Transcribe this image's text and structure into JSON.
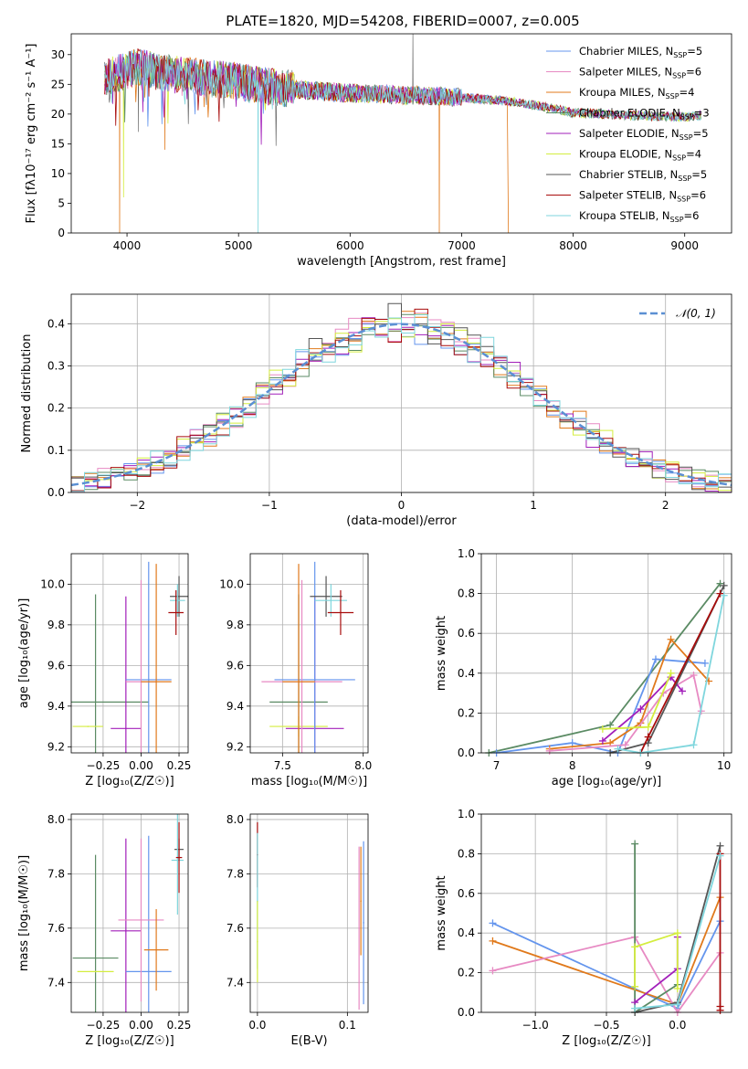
{
  "figure": {
    "title": "PLATE=1820, MJD=54208, FIBERID=0007, z=0.005"
  },
  "colors": {
    "Chabrier MILES": "#6495ed",
    "Salpeter MILES": "#e78ac3",
    "Kroupa MILES": "#e0791b",
    "Chabrier ELODIE": "#5b8b64",
    "Salpeter ELODIE": "#a21fba",
    "Kroupa ELODIE": "#d4ed3f",
    "Chabrier STELIB": "#555555",
    "Salpeter STELIB": "#a80c0c",
    "Kroupa STELIB": "#7fd6dd",
    "gaussian": "#5b8fd3",
    "grid": "#b0b0b0"
  },
  "chart_data": [
    {
      "id": "spectrum",
      "type": "line",
      "xlabel": "wavelength [Angstrom, rest frame]",
      "ylabel": "Flux [fλ10⁻¹⁷ erg cm⁻² s⁻¹ A⁻¹]",
      "xlim": [
        3500,
        9420
      ],
      "ylim": [
        0,
        33.5
      ],
      "xticks": [
        4000,
        5000,
        6000,
        7000,
        8000,
        9000
      ],
      "yticks": [
        0,
        5,
        10,
        15,
        20,
        25,
        30
      ],
      "grid": false,
      "legend_position": "top-right",
      "legend": [
        {
          "label": "Chabrier MILES",
          "sub": "SSP",
          "n": "5"
        },
        {
          "label": "Salpeter MILES",
          "sub": "SSP",
          "n": "6"
        },
        {
          "label": "Kroupa MILES",
          "sub": "SSP",
          "n": "4"
        },
        {
          "label": "Chabrier ELODIE",
          "sub": "SSP",
          "n": "3"
        },
        {
          "label": "Salpeter ELODIE",
          "sub": "SSP",
          "n": "5"
        },
        {
          "label": "Kroupa ELODIE",
          "sub": "SSP",
          "n": "4"
        },
        {
          "label": "Chabrier STELIB",
          "sub": "SSP",
          "n": "5"
        },
        {
          "label": "Salpeter STELIB",
          "sub": "SSP",
          "n": "6"
        },
        {
          "label": "Kroupa STELIB",
          "sub": "SSP",
          "n": "6"
        }
      ],
      "continuum": [
        [
          3800,
          26
        ],
        [
          3950,
          27
        ],
        [
          4100,
          28
        ],
        [
          4300,
          27
        ],
        [
          4500,
          26.5
        ],
        [
          4700,
          26
        ],
        [
          5000,
          25.5
        ],
        [
          5300,
          24.5
        ],
        [
          5600,
          24
        ],
        [
          6000,
          23.5
        ],
        [
          6500,
          23.2
        ],
        [
          6800,
          23
        ],
        [
          7000,
          22.8
        ],
        [
          7200,
          22.5
        ],
        [
          7500,
          22
        ],
        [
          7800,
          21
        ],
        [
          8000,
          20.2
        ],
        [
          8500,
          19.8
        ],
        [
          9000,
          19.5
        ],
        [
          9150,
          19.8
        ]
      ],
      "spikes": [
        {
          "x": 3934,
          "y": 0,
          "series": "Kroupa MILES"
        },
        {
          "x": 3969,
          "y": 6,
          "series": "Kroupa ELODIE"
        },
        {
          "x": 4102,
          "y": 17,
          "series": "Chabrier STELIB"
        },
        {
          "x": 4340,
          "y": 14,
          "series": "Kroupa MILES"
        },
        {
          "x": 5175,
          "y": 0,
          "series": "Kroupa STELIB"
        },
        {
          "x": 6563,
          "y": 33.5,
          "series": "Chabrier STELIB"
        },
        {
          "x": 6800,
          "y": 0,
          "series": "Kroupa MILES"
        },
        {
          "x": 7420,
          "y": 0,
          "series": "Kroupa MILES"
        }
      ]
    },
    {
      "id": "residuals",
      "type": "histogram",
      "xlabel": "(data-model)/error",
      "ylabel": "Normed distribution",
      "xlim": [
        -2.5,
        2.5
      ],
      "ylim": [
        0,
        0.47
      ],
      "xticks": [
        -2,
        -1,
        0,
        1,
        2
      ],
      "yticks": [
        0.0,
        0.1,
        0.2,
        0.3,
        0.4
      ],
      "grid": true,
      "legend_position": "top-right",
      "gaussian_label": "𝒩(0, 1)",
      "bin_width": 0.1
    },
    {
      "id": "age-Z",
      "type": "errorbar",
      "xlabel": "Z [log₁₀(Z/Z☉)]",
      "ylabel": "age  [log₁₀(age/yr)]",
      "xlim": [
        -0.46,
        0.31
      ],
      "ylim": [
        9.17,
        10.15
      ],
      "xticks": [
        -0.25,
        0.0,
        0.25
      ],
      "xticklabels": [
        "−0.25",
        "0.00",
        "0.25"
      ],
      "yticks": [
        9.2,
        9.4,
        9.6,
        9.8,
        10.0
      ],
      "grid": true,
      "points": [
        {
          "series": "Chabrier ELODIE",
          "x": -0.3,
          "y": 9.42,
          "xerr": 0.35,
          "yerr": 0.53
        },
        {
          "series": "Kroupa ELODIE",
          "x": -0.35,
          "y": 9.3,
          "xerr": 0.1,
          "yerr": 0.0
        },
        {
          "series": "Salpeter ELODIE",
          "x": -0.1,
          "y": 9.29,
          "xerr": 0.1,
          "yerr": 0.65
        },
        {
          "series": "Chabrier MILES",
          "x": 0.05,
          "y": 9.53,
          "xerr": 0.15,
          "yerr": 0.58
        },
        {
          "series": "Salpeter MILES",
          "x": 0.0,
          "y": 9.52,
          "xerr": 0.1,
          "yerr": 0.5
        },
        {
          "series": "Kroupa MILES",
          "x": 0.1,
          "y": 9.52,
          "xerr": 0.1,
          "yerr": 0.58
        },
        {
          "series": "Chabrier STELIB",
          "x": 0.25,
          "y": 9.94,
          "xerr": 0.06,
          "yerr": 0.1
        },
        {
          "series": "Kroupa STELIB",
          "x": 0.24,
          "y": 9.92,
          "xerr": 0.05,
          "yerr": 0.08
        },
        {
          "series": "Salpeter STELIB",
          "x": 0.23,
          "y": 9.86,
          "xerr": 0.05,
          "yerr": 0.11
        }
      ]
    },
    {
      "id": "age-mass",
      "type": "errorbar",
      "xlabel": "mass [log₁₀(M/M☉)]",
      "ylabel": "",
      "xlim": [
        7.3,
        8.03
      ],
      "ylim": [
        9.17,
        10.15
      ],
      "xticks": [
        7.5,
        8.0
      ],
      "xticklabels": [
        "7.5",
        "8.0"
      ],
      "yticks": [
        9.2,
        9.4,
        9.6,
        9.8,
        10.0
      ],
      "grid": true,
      "points": [
        {
          "series": "Chabrier ELODIE",
          "x": 7.6,
          "y": 9.42,
          "xerr": 0.18,
          "yerr": 0.53
        },
        {
          "series": "Kroupa ELODIE",
          "x": 7.6,
          "y": 9.3,
          "xerr": 0.18,
          "yerr": 0.05
        },
        {
          "series": "Salpeter ELODIE",
          "x": 7.7,
          "y": 9.29,
          "xerr": 0.18,
          "yerr": 0.65
        },
        {
          "series": "Chabrier MILES",
          "x": 7.7,
          "y": 9.53,
          "xerr": 0.25,
          "yerr": 0.58
        },
        {
          "series": "Salpeter MILES",
          "x": 7.62,
          "y": 9.52,
          "xerr": 0.25,
          "yerr": 0.5
        },
        {
          "series": "Kroupa MILES",
          "x": 7.6,
          "y": 9.52,
          "xerr": 0.1,
          "yerr": 0.58
        },
        {
          "series": "Chabrier STELIB",
          "x": 7.77,
          "y": 9.94,
          "xerr": 0.1,
          "yerr": 0.1
        },
        {
          "series": "Kroupa STELIB",
          "x": 7.8,
          "y": 9.92,
          "xerr": 0.1,
          "yerr": 0.08
        },
        {
          "series": "Salpeter STELIB",
          "x": 7.86,
          "y": 9.86,
          "xerr": 0.08,
          "yerr": 0.11
        }
      ]
    },
    {
      "id": "weight-age",
      "type": "line",
      "xlabel": "age  [log₁₀(age/yr)]",
      "ylabel": "mass weight",
      "xlim": [
        6.8,
        10.1
      ],
      "ylim": [
        0,
        1.0
      ],
      "xticks": [
        7,
        8,
        9,
        10
      ],
      "yticks": [
        0.0,
        0.2,
        0.4,
        0.6,
        0.8,
        1.0
      ],
      "grid": true,
      "series": [
        {
          "name": "Chabrier ELODIE",
          "x": [
            6.9,
            8.5,
            9.95
          ],
          "y": [
            0.0,
            0.14,
            0.85
          ]
        },
        {
          "name": "Chabrier MILES",
          "x": [
            7.0,
            8.0,
            8.6,
            9.1,
            9.75
          ],
          "y": [
            0.0,
            0.05,
            0.0,
            0.47,
            0.45
          ]
        },
        {
          "name": "Kroupa MILES",
          "x": [
            7.7,
            8.5,
            8.9,
            9.3,
            9.8
          ],
          "y": [
            0.02,
            0.05,
            0.15,
            0.57,
            0.36
          ]
        },
        {
          "name": "Salpeter MILES",
          "x": [
            7.7,
            8.7,
            9.2,
            9.6,
            9.7
          ],
          "y": [
            0.01,
            0.04,
            0.3,
            0.39,
            0.21
          ]
        },
        {
          "name": "Salpeter ELODIE",
          "x": [
            8.4,
            8.9,
            9.3,
            9.45
          ],
          "y": [
            0.06,
            0.22,
            0.38,
            0.31
          ]
        },
        {
          "name": "Kroupa ELODIE",
          "x": [
            8.4,
            9.0,
            9.3
          ],
          "y": [
            0.12,
            0.13,
            0.4
          ]
        },
        {
          "name": "Chabrier STELIB",
          "x": [
            8.5,
            9.0,
            10.0
          ],
          "y": [
            0.0,
            0.05,
            0.84
          ]
        },
        {
          "name": "Salpeter STELIB",
          "x": [
            8.9,
            9.0,
            9.95
          ],
          "y": [
            0.0,
            0.08,
            0.8
          ]
        },
        {
          "name": "Kroupa STELIB",
          "x": [
            8.6,
            8.9,
            9.6,
            10.0
          ],
          "y": [
            0.02,
            0.0,
            0.04,
            0.79
          ]
        }
      ]
    },
    {
      "id": "mass-Z",
      "type": "errorbar",
      "xlabel": "Z [log₁₀(Z/Z☉)]",
      "ylabel": "mass [log₁₀(M/M☉)]",
      "xlim": [
        -0.46,
        0.31
      ],
      "ylim": [
        7.29,
        8.02
      ],
      "xticks": [
        -0.25,
        0.0,
        0.25
      ],
      "xticklabels": [
        "−0.25",
        "0.00",
        "0.25"
      ],
      "yticks": [
        7.4,
        7.6,
        7.8,
        8.0
      ],
      "grid": true,
      "points": [
        {
          "series": "Chabrier ELODIE",
          "x": -0.3,
          "y": 7.49,
          "xerr": 0.15,
          "yerr": 0.38
        },
        {
          "series": "Kroupa ELODIE",
          "x": -0.3,
          "y": 7.44,
          "xerr": 0.12,
          "yerr": 0.0
        },
        {
          "series": "Salpeter ELODIE",
          "x": -0.1,
          "y": 7.59,
          "xerr": 0.1,
          "yerr": 0.34
        },
        {
          "series": "Chabrier MILES",
          "x": 0.05,
          "y": 7.44,
          "xerr": 0.15,
          "yerr": 0.5
        },
        {
          "series": "Salpeter MILES",
          "x": 0.0,
          "y": 7.63,
          "xerr": 0.15,
          "yerr": 0.3
        },
        {
          "series": "Kroupa MILES",
          "x": 0.1,
          "y": 7.52,
          "xerr": 0.08,
          "yerr": 0.15
        },
        {
          "series": "Chabrier STELIB",
          "x": 0.25,
          "y": 7.89,
          "xerr": 0.03,
          "yerr": 0.04
        },
        {
          "series": "Kroupa STELIB",
          "x": 0.24,
          "y": 7.85,
          "xerr": 0.04,
          "yerr": 0.2
        },
        {
          "series": "Salpeter STELIB",
          "x": 0.25,
          "y": 7.86,
          "xerr": 0.02,
          "yerr": 0.13
        }
      ]
    },
    {
      "id": "mass-ebv",
      "type": "errorbar",
      "xlabel": "E(B-V)",
      "ylabel": "",
      "xlim": [
        -0.008,
        0.123
      ],
      "ylim": [
        7.29,
        8.02
      ],
      "xticks": [
        0.0,
        0.1
      ],
      "xticklabels": [
        "0.0",
        "0.1"
      ],
      "yticks": [
        7.4,
        7.6,
        7.8,
        8.0
      ],
      "grid": true,
      "points": [
        {
          "series": "Salpeter STELIB",
          "x": 0.0,
          "y": 7.87,
          "xerr": 0.0,
          "yerr": 0.12
        },
        {
          "series": "Kroupa STELIB",
          "x": 0.0,
          "y": 7.7,
          "xerr": 0.0,
          "yerr": 0.25
        },
        {
          "series": "Kroupa ELODIE",
          "x": 0.0,
          "y": 7.55,
          "xerr": 0.0,
          "yerr": 0.15
        },
        {
          "series": "Chabrier MILES",
          "x": 0.118,
          "y": 7.62,
          "xerr": 0.0,
          "yerr": 0.3
        },
        {
          "series": "Kroupa MILES",
          "x": 0.115,
          "y": 7.7,
          "xerr": 0.0,
          "yerr": 0.2
        },
        {
          "series": "Salpeter MILES",
          "x": 0.113,
          "y": 7.6,
          "xerr": 0.0,
          "yerr": 0.3
        }
      ]
    },
    {
      "id": "weight-Z",
      "type": "line",
      "xlabel": "Z [log₁₀(Z/Z☉)]",
      "ylabel": "mass weight",
      "xlim": [
        -1.38,
        0.38
      ],
      "ylim": [
        0,
        1.0
      ],
      "xticks": [
        -1.0,
        -0.5,
        0.0
      ],
      "xticklabels": [
        "−1.0",
        "−0.5",
        "0.0"
      ],
      "yticks": [
        0.0,
        0.2,
        0.4,
        0.6,
        0.8,
        1.0
      ],
      "grid": true,
      "series": [
        {
          "name": "Chabrier MILES",
          "x": [
            -1.3,
            0.0,
            0.3
          ],
          "y": [
            0.45,
            0.02,
            0.46
          ]
        },
        {
          "name": "Kroupa MILES",
          "x": [
            -1.3,
            0.0,
            0.3
          ],
          "y": [
            0.36,
            0.04,
            0.58
          ]
        },
        {
          "name": "Salpeter MILES",
          "x": [
            -1.3,
            -0.3,
            0.0,
            0.3
          ],
          "y": [
            0.21,
            0.38,
            0.0,
            0.3
          ]
        },
        {
          "name": "Chabrier ELODIE",
          "x": [
            -0.3,
            -0.3,
            0.0
          ],
          "y": [
            0.85,
            0.0,
            0.14
          ]
        },
        {
          "name": "Salpeter ELODIE",
          "x": [
            -0.3,
            0.0,
            0.0
          ],
          "y": [
            0.05,
            0.22,
            0.38
          ]
        },
        {
          "name": "Kroupa ELODIE",
          "x": [
            -0.3,
            -0.3,
            0.0,
            0.0
          ],
          "y": [
            0.13,
            0.33,
            0.4,
            0.12
          ]
        },
        {
          "name": "Chabrier STELIB",
          "x": [
            -0.3,
            0.0,
            0.3
          ],
          "y": [
            0.0,
            0.05,
            0.84
          ]
        },
        {
          "name": "Salpeter STELIB",
          "x": [
            0.3,
            0.3,
            0.3
          ],
          "y": [
            0.8,
            0.03,
            0.01
          ]
        },
        {
          "name": "Kroupa STELIB",
          "x": [
            -0.3,
            0.0,
            0.3
          ],
          "y": [
            0.02,
            0.04,
            0.79
          ]
        }
      ]
    }
  ]
}
